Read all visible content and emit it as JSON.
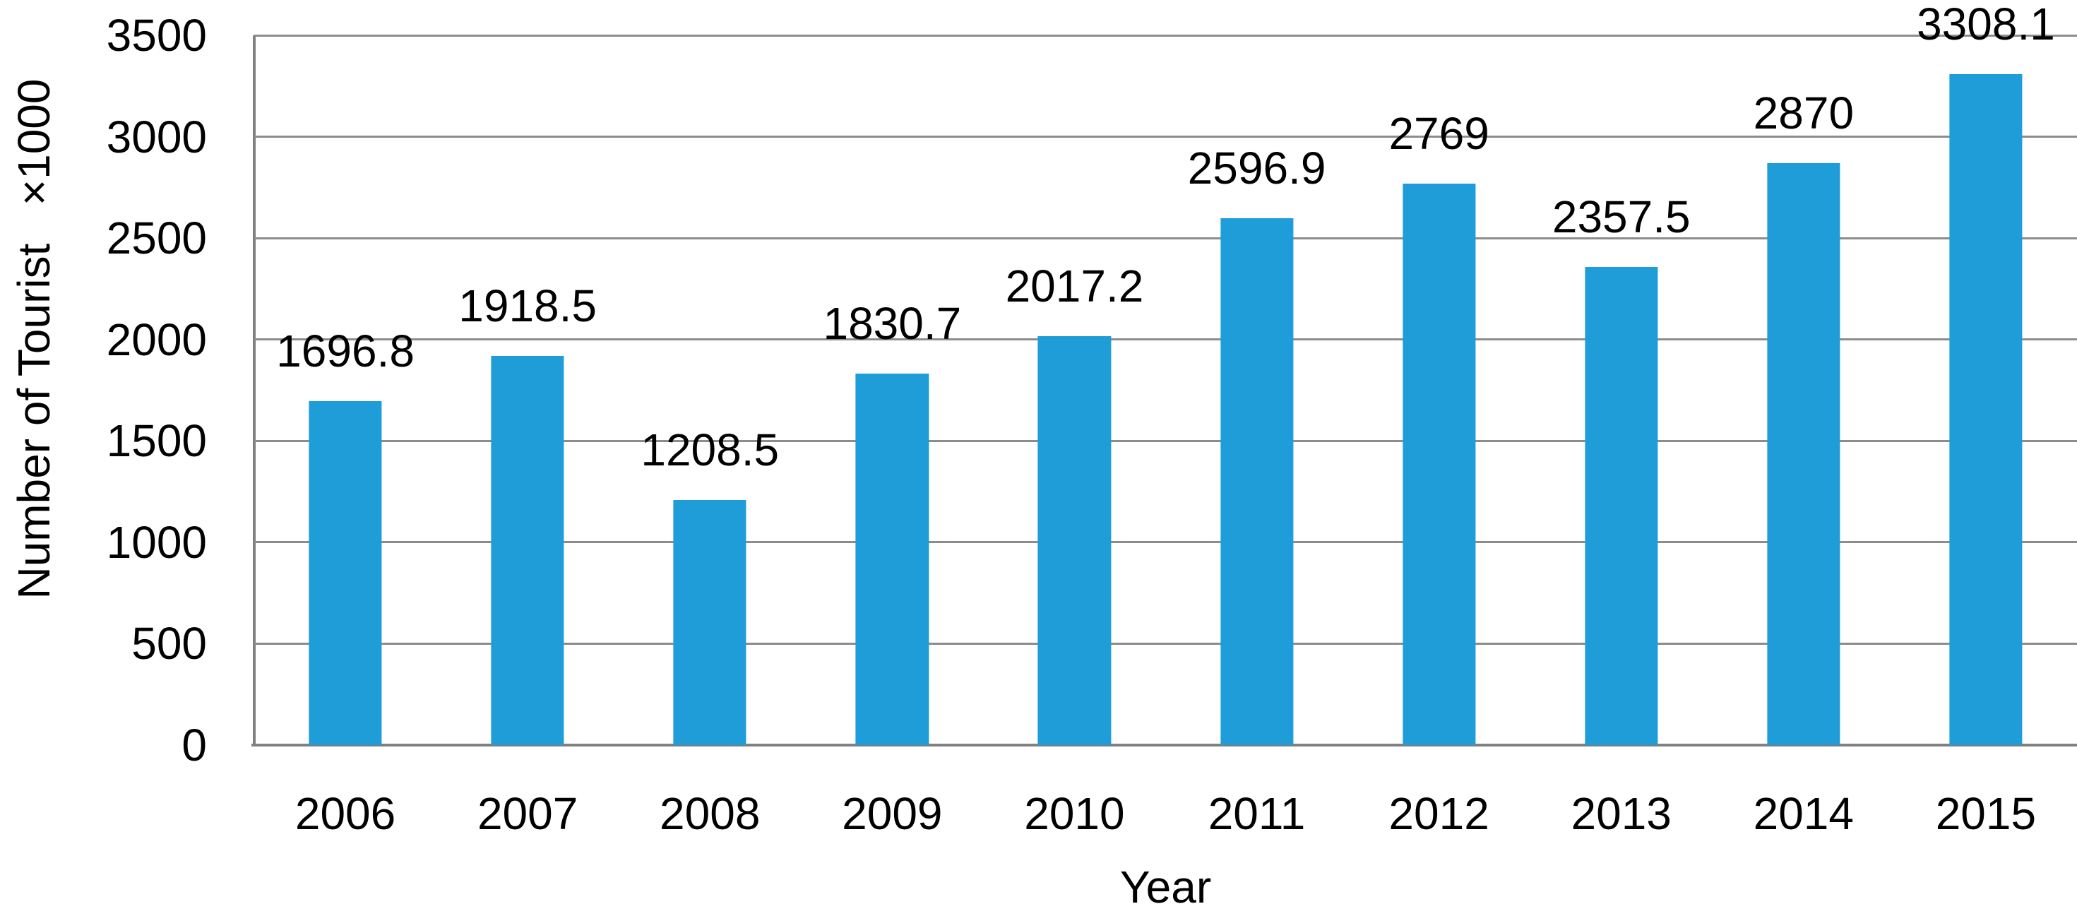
{
  "chart_data": {
    "type": "bar",
    "title": "",
    "xlabel": "Year",
    "ylabel": "Number of Tourist   ×1000",
    "categories": [
      "2006",
      "2007",
      "2008",
      "2009",
      "2010",
      "2011",
      "2012",
      "2013",
      "2014",
      "2015"
    ],
    "values": [
      1696.8,
      1918.5,
      1208.5,
      1830.7,
      2017.2,
      2596.9,
      2769,
      2357.5,
      2870,
      3308.1
    ],
    "data_labels": [
      "1696.8",
      "1918.5",
      "1208.5",
      "1830.7",
      "2017.2",
      "2596.9",
      "2769",
      "2357.5",
      "2870",
      "3308.1"
    ],
    "yticks": [
      0,
      500,
      1000,
      1500,
      2000,
      2500,
      3000,
      3500
    ],
    "ylim": [
      0,
      3500
    ],
    "grid": true,
    "legend_position": "none",
    "bar_color": "#1F9DD9",
    "gridline_color": "#8C8C8C",
    "axis_color": "#808080",
    "text_color": "#000000"
  }
}
